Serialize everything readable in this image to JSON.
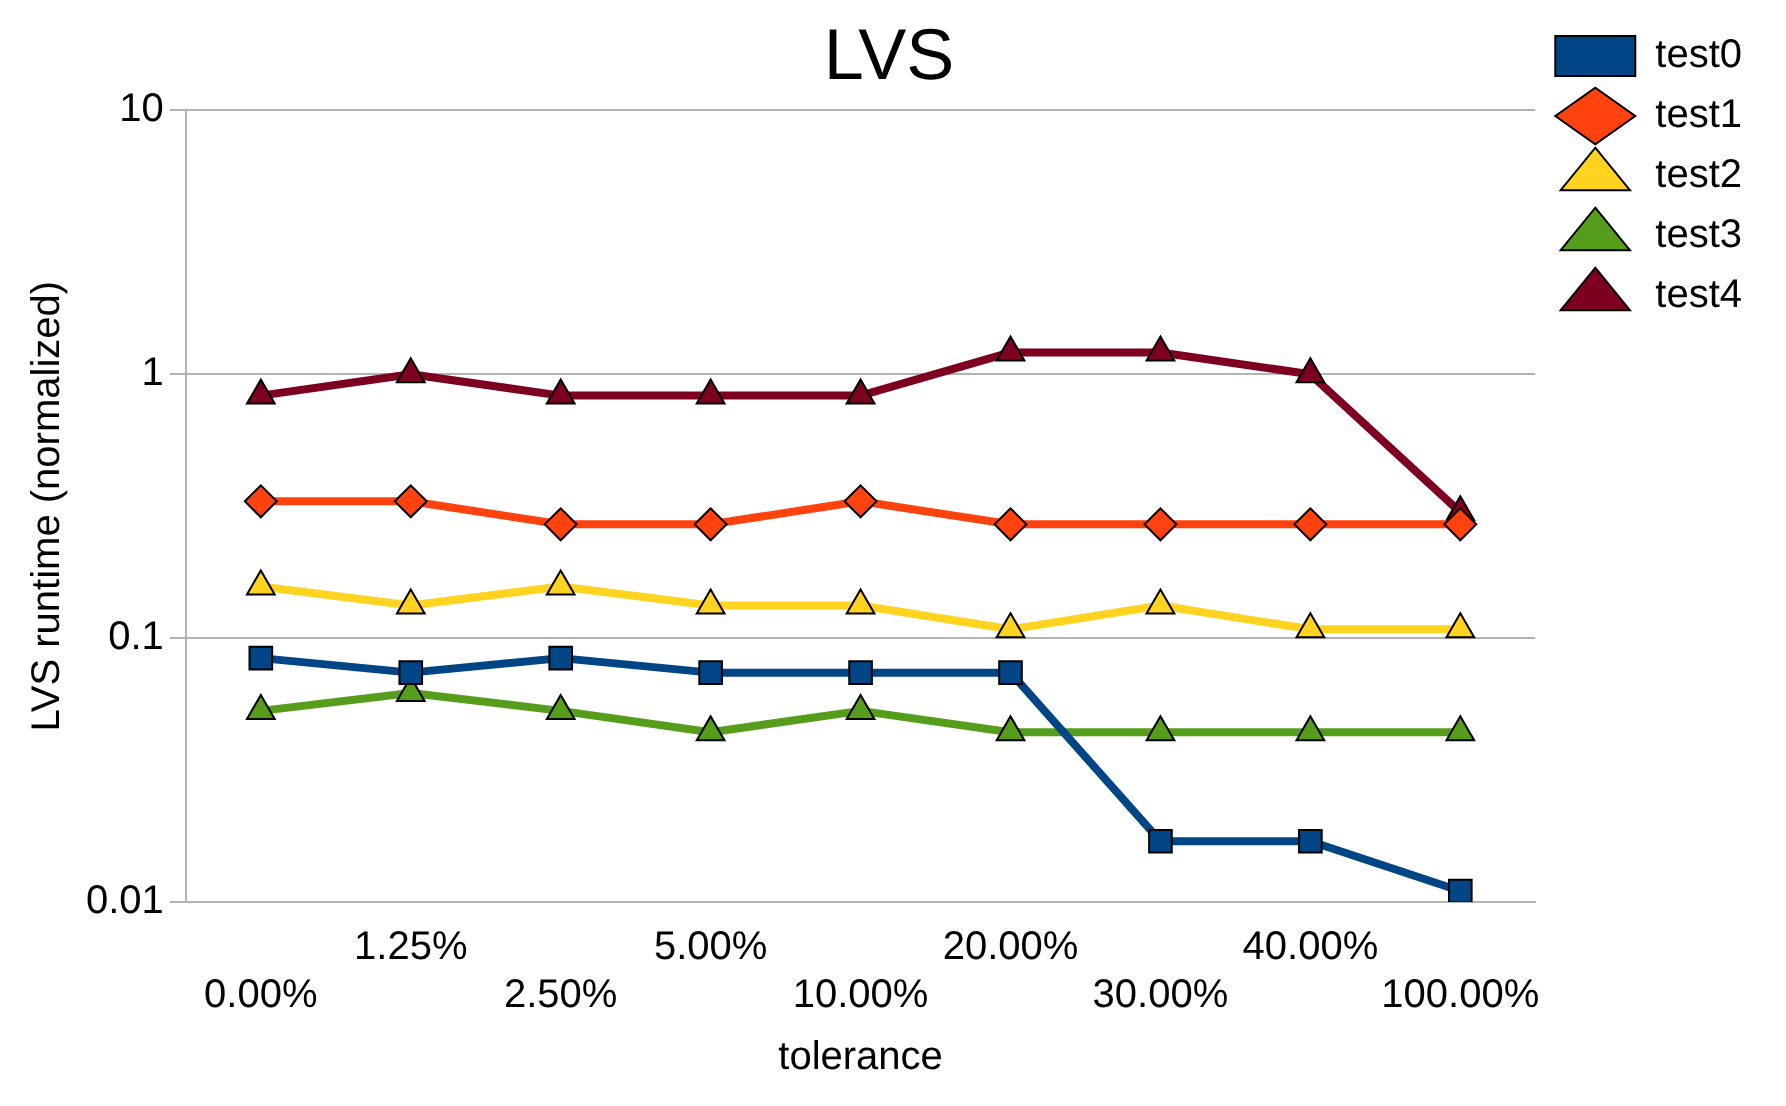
{
  "chart_data": {
    "type": "line",
    "title": "LVS",
    "xlabel": "tolerance",
    "ylabel": "LVS runtime (normalized)",
    "categories": [
      "0.00%",
      "1.25%",
      "2.50%",
      "5.00%",
      "10.00%",
      "20.00%",
      "30.00%",
      "40.00%",
      "100.00%"
    ],
    "log": "y",
    "ylim": [
      0.01,
      10
    ],
    "yticks": [
      {
        "value": 0.01,
        "label": "0.01"
      },
      {
        "value": 0.1,
        "label": "0.1"
      },
      1,
      10
    ],
    "grid": "y",
    "legend": "right",
    "line_style": "solid",
    "series": [
      {
        "name": "test0",
        "color": "#004586",
        "marker": "square",
        "values": [
          0.084,
          0.074,
          0.084,
          0.074,
          0.074,
          0.074,
          0.017,
          0.017,
          0.011
        ]
      },
      {
        "name": "test1",
        "color": "#ff420e",
        "marker": "diamond",
        "values": [
          0.33,
          0.33,
          0.27,
          0.27,
          0.33,
          0.27,
          0.27,
          0.27,
          0.27
        ]
      },
      {
        "name": "test2",
        "color": "#ffd320",
        "marker": "triangle",
        "values": [
          0.157,
          0.133,
          0.157,
          0.133,
          0.133,
          0.108,
          0.133,
          0.108,
          0.108
        ]
      },
      {
        "name": "test3",
        "color": "#579d1c",
        "marker": "triangle",
        "values": [
          0.053,
          0.062,
          0.053,
          0.044,
          0.053,
          0.044,
          0.044,
          0.044,
          0.044
        ]
      },
      {
        "name": "test4",
        "color": "#7e0021",
        "marker": "triangle",
        "values": [
          0.83,
          1.0,
          0.83,
          0.83,
          0.83,
          1.21,
          1.21,
          1.0,
          0.3
        ]
      }
    ]
  }
}
